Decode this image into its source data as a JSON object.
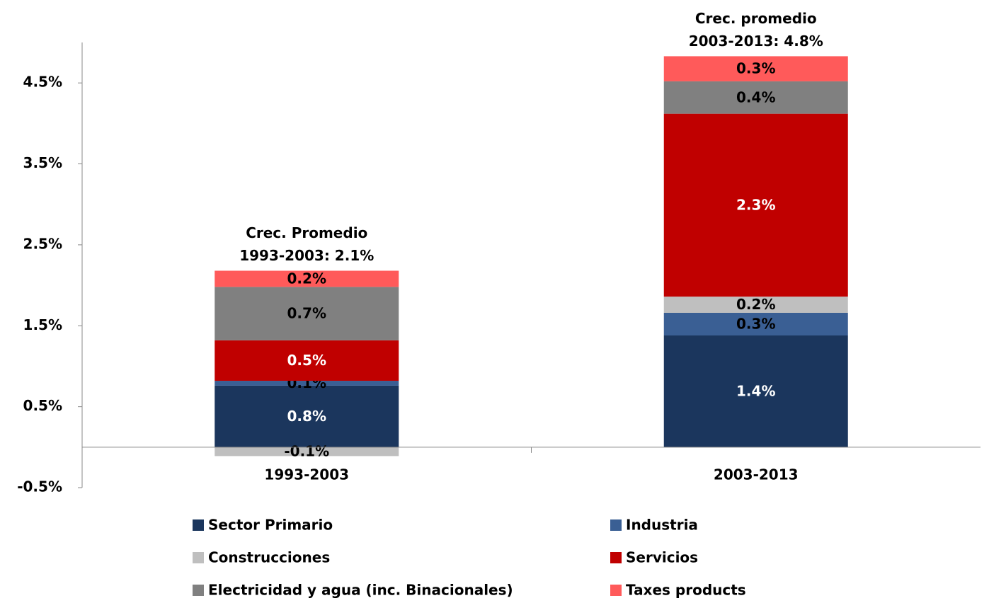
{
  "chart_data": {
    "type": "stacked_bar",
    "categories": [
      "1993-2003",
      "2003-2013"
    ],
    "series": [
      {
        "name": "Sector Primario",
        "color": "#1b365d",
        "values": [
          0.76,
          1.38
        ],
        "value_labels": [
          "0.8%",
          "1.4%"
        ]
      },
      {
        "name": "Industria",
        "color": "#3a5f94",
        "values": [
          0.06,
          0.28
        ],
        "value_labels": [
          "0.1%",
          "0.3%"
        ]
      },
      {
        "name": "Construcciones",
        "color": "#bfbfbf",
        "values": [
          -0.11,
          0.2
        ],
        "value_labels": [
          "-0.1%",
          "0.2%"
        ]
      },
      {
        "name": "Servicios",
        "color": "#c00000",
        "values": [
          0.5,
          2.26
        ],
        "value_labels": [
          "0.5%",
          "2.3%"
        ]
      },
      {
        "name": "Electricidad y agua (inc. Binacionales)",
        "color": "#808080",
        "values": [
          0.66,
          0.4
        ],
        "value_labels": [
          "0.7%",
          "0.4%"
        ]
      },
      {
        "name": "Taxes products",
        "color": "#ff5a5a",
        "values": [
          0.2,
          0.31
        ],
        "value_labels": [
          "0.2%",
          "0.3%"
        ]
      }
    ],
    "annotations": [
      {
        "lines": [
          "Crec. Promedio",
          "1993-2003: 2.1%"
        ]
      },
      {
        "lines": [
          "Crec. promedio",
          "2003-2013: 4.8%"
        ]
      }
    ],
    "ylim": [
      -0.5,
      5
    ],
    "yticks": [
      {
        "value": -0.5,
        "label": "-0.5%"
      },
      {
        "value": 0.5,
        "label": "0.5%"
      },
      {
        "value": 1.5,
        "label": "1.5%"
      },
      {
        "value": 2.5,
        "label": "2.5%"
      },
      {
        "value": 3.5,
        "label": "3.5%"
      },
      {
        "value": 4.5,
        "label": "4.5%"
      }
    ]
  }
}
